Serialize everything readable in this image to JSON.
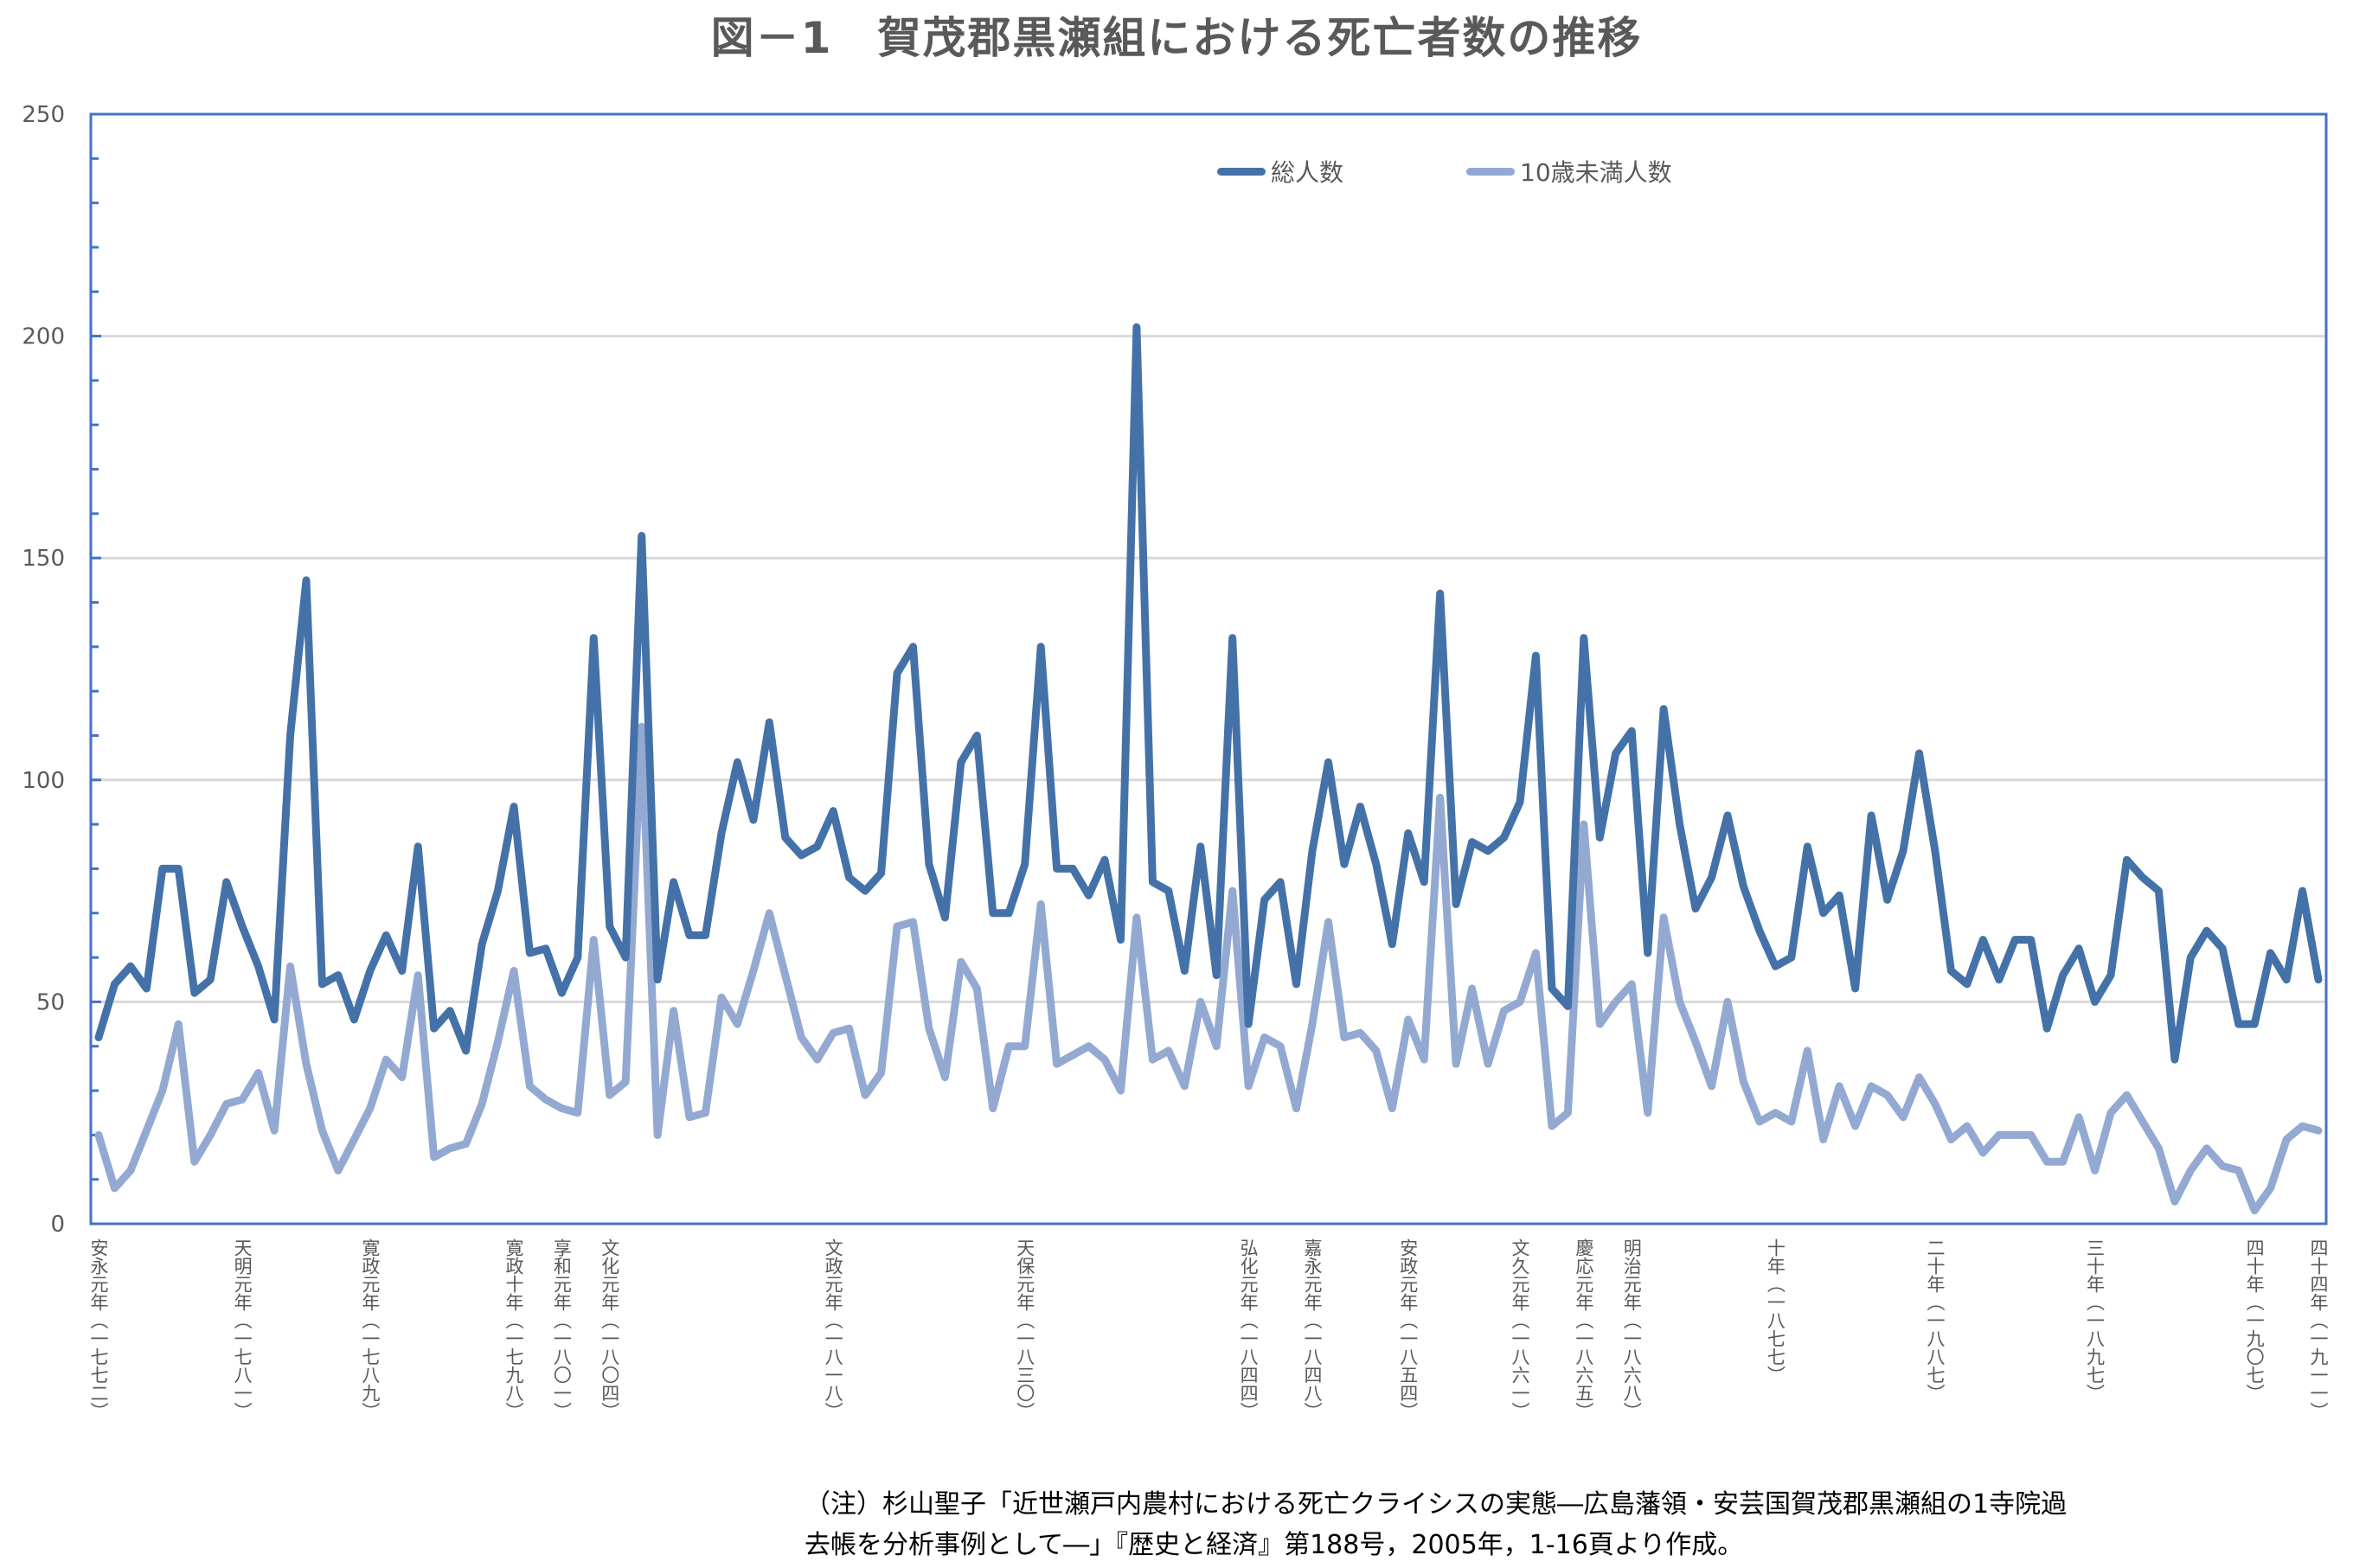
{
  "title": "図－1　賀茂郡黒瀬組における死亡者数の推移",
  "legend": [
    {
      "label": "総人数",
      "color": "#4472A8"
    },
    {
      "label": "10歳未満人数",
      "color": "#93A9D2"
    }
  ],
  "note": {
    "line1": "（注）杉山聖子「近世瀬戸内農村における死亡クライシスの実態―広島藩領・安芸国賀茂郡黒瀬組の1寺院過",
    "line2": "去帳を分析事例として―」『歴史と経済』第188号，2005年，1-16頁より作成。"
  },
  "chart_data": {
    "type": "line",
    "title": "図－1　賀茂郡黒瀬組における死亡者数の推移",
    "xlabel": "",
    "ylabel": "",
    "ylim": [
      0,
      250
    ],
    "yticks": [
      0,
      50,
      100,
      150,
      200,
      250
    ],
    "grid": true,
    "legend_position": "top",
    "x_start": 1772,
    "x_end": 1911,
    "x_tick_labels": [
      {
        "year": 1772,
        "label": "安永元年（一七七二）"
      },
      {
        "year": 1781,
        "label": "天明元年（一七八一）"
      },
      {
        "year": 1789,
        "label": "寛政元年（一七八九）"
      },
      {
        "year": 1798,
        "label": "寛政十年（一七九八）"
      },
      {
        "year": 1801,
        "label": "享和元年（一八〇一）"
      },
      {
        "year": 1804,
        "label": "文化元年（一八〇四）"
      },
      {
        "year": 1818,
        "label": "文政元年（一八一八）"
      },
      {
        "year": 1830,
        "label": "天保元年（一八三〇）"
      },
      {
        "year": 1844,
        "label": "弘化元年（一八四四）"
      },
      {
        "year": 1848,
        "label": "嘉永元年（一八四八）"
      },
      {
        "year": 1854,
        "label": "安政元年（一八五四）"
      },
      {
        "year": 1861,
        "label": "文久元年（一八六一）"
      },
      {
        "year": 1865,
        "label": "慶応元年（一八六五）"
      },
      {
        "year": 1868,
        "label": "明治元年（一八六八）"
      },
      {
        "year": 1877,
        "label": "十年（一八七七）"
      },
      {
        "year": 1887,
        "label": "二十年（一八八七）"
      },
      {
        "year": 1897,
        "label": "三十年（一八九七）"
      },
      {
        "year": 1907,
        "label": "四十年（一九〇七）"
      },
      {
        "year": 1911,
        "label": "四十四年（一九一一）"
      }
    ],
    "series": [
      {
        "name": "総人数",
        "color": "#4472A8",
        "values": [
          42,
          54,
          58,
          53,
          80,
          80,
          52,
          55,
          77,
          67,
          58,
          46,
          110,
          145,
          54,
          56,
          46,
          57,
          65,
          57,
          85,
          44,
          48,
          39,
          63,
          75,
          94,
          61,
          62,
          52,
          60,
          132,
          67,
          60,
          155,
          55,
          77,
          65,
          65,
          88,
          104,
          91,
          113,
          87,
          83,
          85,
          93,
          78,
          75,
          79,
          124,
          130,
          81,
          69,
          104,
          110,
          70,
          70,
          81,
          130,
          80,
          80,
          74,
          82,
          64,
          202,
          77,
          75,
          57,
          85,
          56,
          132,
          45,
          73,
          77,
          54,
          84,
          104,
          81,
          94,
          81,
          63,
          88,
          77,
          142,
          72,
          86,
          84,
          87,
          95,
          128,
          53,
          49,
          132,
          87,
          106,
          111,
          61,
          116,
          90,
          71,
          78,
          92,
          76,
          66,
          58,
          60,
          85,
          70,
          74,
          53,
          92,
          73,
          84,
          106,
          84,
          57,
          54,
          64,
          55,
          64,
          64,
          44,
          56,
          62,
          50,
          56,
          82,
          78,
          75,
          37,
          60,
          66,
          62,
          45,
          45,
          61,
          55,
          75,
          55
        ]
      },
      {
        "name": "10歳未満人数",
        "color": "#93A9D2",
        "values": [
          20,
          8,
          12,
          21,
          30,
          45,
          14,
          20,
          27,
          28,
          34,
          21,
          58,
          36,
          21,
          12,
          19,
          26,
          37,
          33,
          56,
          15,
          17,
          18,
          27,
          41,
          57,
          31,
          28,
          26,
          25,
          64,
          29,
          32,
          112,
          20,
          48,
          24,
          25,
          51,
          45,
          57,
          70,
          56,
          42,
          37,
          43,
          44,
          29,
          34,
          67,
          68,
          44,
          33,
          59,
          53,
          26,
          40,
          40,
          72,
          36,
          38,
          40,
          37,
          30,
          69,
          37,
          39,
          31,
          50,
          40,
          75,
          31,
          42,
          40,
          26,
          45,
          68,
          42,
          43,
          39,
          26,
          46,
          37,
          96,
          36,
          53,
          36,
          48,
          50,
          61,
          22,
          25,
          90,
          45,
          50,
          54,
          25,
          69,
          50,
          41,
          31,
          50,
          32,
          23,
          25,
          23,
          39,
          19,
          31,
          22,
          31,
          29,
          24,
          33,
          27,
          19,
          22,
          16,
          20,
          20,
          20,
          14,
          14,
          24,
          12,
          25,
          29,
          23,
          17,
          5,
          12,
          17,
          13,
          12,
          3,
          8,
          19,
          22,
          21
        ]
      }
    ]
  }
}
